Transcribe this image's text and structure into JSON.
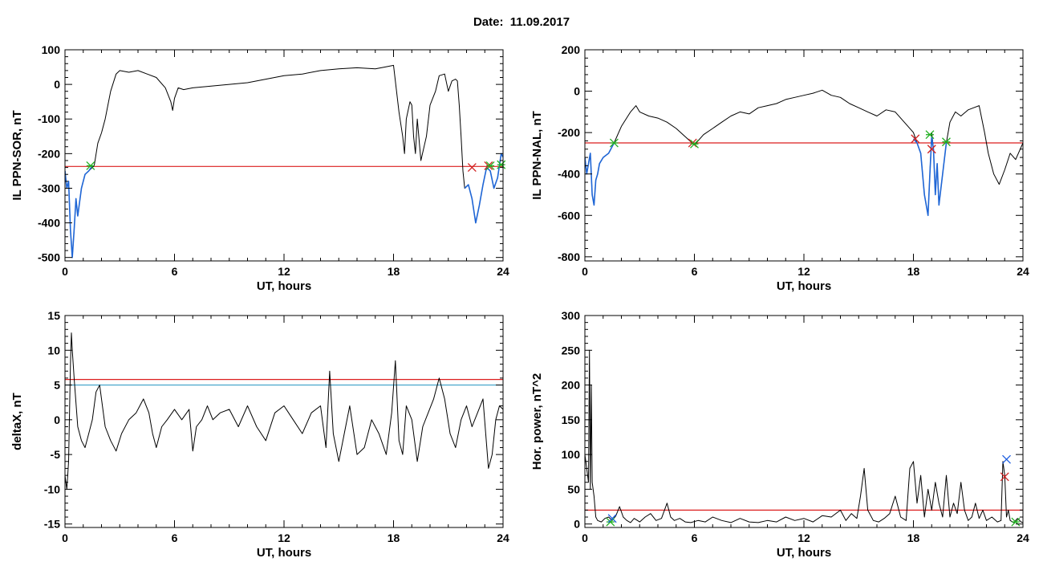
{
  "title": "Date:  11.09.2017",
  "colors": {
    "background": "#ffffff",
    "axes": "#000000",
    "trace": "#000000",
    "highlight_trace": "#1f66d6",
    "threshold": "#dc1e1e",
    "threshold_secondary": "#3aa0c8",
    "marker_start": "#d02020",
    "marker_end": "#22b022",
    "marker_extra": "#2060e0"
  },
  "chart_data": [
    {
      "type": "line",
      "xlabel": "UT, hours",
      "ylabel": "IL PPN-SOR, nT",
      "xlim": [
        0,
        24
      ],
      "ylim": [
        -510,
        100
      ],
      "xticks": [
        0,
        6,
        12,
        18,
        24
      ],
      "yticks": [
        -500,
        -400,
        -300,
        -200,
        -100,
        0,
        100
      ],
      "series": [
        {
          "role": "trace",
          "x": [
            0,
            0.1,
            0.2,
            0.3,
            0.4,
            0.5,
            0.6,
            0.7,
            0.9,
            1.1,
            1.3,
            1.6,
            1.8,
            2.0,
            2.2,
            2.5,
            2.8,
            3.0,
            3.5,
            4.0,
            4.5,
            5.0,
            5.5,
            5.8,
            5.9,
            6.0,
            6.2,
            6.5,
            7.0,
            8.0,
            9.0,
            10.0,
            11.0,
            12.0,
            13.0,
            14.0,
            15.0,
            16.0,
            17.0,
            17.5,
            18.0,
            18.3,
            18.5,
            18.6,
            18.7,
            18.9,
            19.0,
            19.1,
            19.2,
            19.3,
            19.5,
            19.8,
            20.0,
            20.3,
            20.5,
            20.8,
            21.0,
            21.2,
            21.4,
            21.5,
            21.6,
            21.7,
            21.8,
            21.9,
            22.1,
            22.3,
            22.5,
            22.7,
            22.9,
            23.1,
            23.3,
            23.5,
            23.7,
            23.9,
            24.0
          ],
          "y": [
            -250,
            -300,
            -280,
            -420,
            -500,
            -420,
            -330,
            -380,
            -300,
            -260,
            -250,
            -235,
            -170,
            -140,
            -100,
            -20,
            30,
            40,
            35,
            40,
            30,
            20,
            -10,
            -50,
            -75,
            -40,
            -10,
            -15,
            -10,
            -5,
            0,
            5,
            15,
            25,
            30,
            40,
            45,
            48,
            45,
            50,
            55,
            -80,
            -150,
            -200,
            -100,
            -50,
            -60,
            -150,
            -200,
            -100,
            -220,
            -150,
            -60,
            -20,
            25,
            30,
            -20,
            10,
            15,
            10,
            -60,
            -150,
            -250,
            -300,
            -290,
            -330,
            -400,
            -350,
            -290,
            -240,
            -250,
            -300,
            -270,
            -200,
            -210
          ]
        },
        {
          "role": "highlight",
          "x": [
            0,
            0.1,
            0.2,
            0.3,
            0.4,
            0.5,
            0.6,
            0.7,
            0.9,
            1.1,
            1.3,
            1.5
          ],
          "y": [
            -250,
            -300,
            -280,
            -420,
            -500,
            -420,
            -330,
            -380,
            -300,
            -260,
            -250,
            -235
          ]
        },
        {
          "role": "highlight",
          "x": [
            21.9,
            22.1,
            22.3,
            22.5,
            22.7,
            22.9,
            23.1,
            23.3,
            23.5,
            23.7,
            23.9,
            24.0
          ],
          "y": [
            -300,
            -290,
            -330,
            -400,
            -350,
            -290,
            -240,
            -250,
            -300,
            -270,
            -200,
            -210
          ]
        }
      ],
      "hlines": [
        {
          "y": -237,
          "role": "threshold"
        }
      ],
      "markers": [
        {
          "x": 1.4,
          "y": -235,
          "role": "marker_end"
        },
        {
          "x": 22.3,
          "y": -240,
          "role": "marker_start"
        },
        {
          "x": 23.2,
          "y": -235,
          "role": "marker_start"
        },
        {
          "x": 23.3,
          "y": -235,
          "role": "marker_end"
        },
        {
          "x": 23.9,
          "y": -232,
          "role": "marker_end"
        }
      ]
    },
    {
      "type": "line",
      "xlabel": "UT, hours",
      "ylabel": "IL PPN-NAL, nT",
      "xlim": [
        0,
        24
      ],
      "ylim": [
        -820,
        200
      ],
      "xticks": [
        0,
        6,
        12,
        18,
        24
      ],
      "yticks": [
        -800,
        -600,
        -400,
        -200,
        0,
        200
      ],
      "series": [
        {
          "role": "trace",
          "x": [
            0,
            0.1,
            0.2,
            0.3,
            0.4,
            0.5,
            0.6,
            0.7,
            0.8,
            1.0,
            1.3,
            1.6,
            2.0,
            2.5,
            2.8,
            3.0,
            3.5,
            4.0,
            4.5,
            5.0,
            5.5,
            6.0,
            6.5,
            7.0,
            7.5,
            8.0,
            8.5,
            9.0,
            9.5,
            10.0,
            10.5,
            11.0,
            11.5,
            12.0,
            12.5,
            13.0,
            13.5,
            14.0,
            14.5,
            15.0,
            15.5,
            16.0,
            16.5,
            17.0,
            17.5,
            18.0,
            18.2,
            18.4,
            18.6,
            18.8,
            18.9,
            19.0,
            19.1,
            19.2,
            19.3,
            19.4,
            19.6,
            19.8,
            20.0,
            20.3,
            20.6,
            21.0,
            21.3,
            21.6,
            21.9,
            22.1,
            22.4,
            22.7,
            23.0,
            23.3,
            23.6,
            24.0
          ],
          "y": [
            -320,
            -400,
            -350,
            -300,
            -500,
            -550,
            -430,
            -400,
            -350,
            -320,
            -300,
            -250,
            -170,
            -100,
            -70,
            -100,
            -120,
            -130,
            -150,
            -180,
            -220,
            -260,
            -210,
            -180,
            -150,
            -120,
            -100,
            -110,
            -80,
            -70,
            -60,
            -40,
            -30,
            -20,
            -10,
            5,
            -20,
            -30,
            -60,
            -80,
            -100,
            -120,
            -90,
            -100,
            -150,
            -200,
            -250,
            -300,
            -500,
            -600,
            -400,
            -200,
            -280,
            -500,
            -350,
            -550,
            -400,
            -250,
            -150,
            -100,
            -120,
            -90,
            -80,
            -70,
            -200,
            -300,
            -400,
            -450,
            -380,
            -300,
            -330,
            -250
          ]
        },
        {
          "role": "highlight",
          "x": [
            0,
            0.1,
            0.2,
            0.3,
            0.4,
            0.5,
            0.6,
            0.7,
            0.8,
            1.0,
            1.3,
            1.6
          ],
          "y": [
            -320,
            -400,
            -350,
            -300,
            -500,
            -550,
            -430,
            -400,
            -350,
            -320,
            -300,
            -250
          ]
        },
        {
          "role": "highlight",
          "x": [
            18.0,
            18.2,
            18.4,
            18.6,
            18.8,
            18.9,
            19.0,
            19.1,
            19.2,
            19.3,
            19.4,
            19.6,
            19.8
          ],
          "y": [
            -230,
            -250,
            -300,
            -500,
            -600,
            -400,
            -220,
            -280,
            -500,
            -350,
            -550,
            -400,
            -250
          ]
        }
      ],
      "hlines": [
        {
          "y": -250,
          "role": "threshold"
        }
      ],
      "markers": [
        {
          "x": 1.6,
          "y": -250,
          "role": "marker_end"
        },
        {
          "x": 5.9,
          "y": -250,
          "role": "marker_start"
        },
        {
          "x": 6.0,
          "y": -255,
          "role": "marker_end"
        },
        {
          "x": 18.1,
          "y": -230,
          "role": "marker_start"
        },
        {
          "x": 18.9,
          "y": -210,
          "role": "marker_end"
        },
        {
          "x": 19.0,
          "y": -280,
          "role": "marker_start"
        },
        {
          "x": 19.8,
          "y": -245,
          "role": "marker_end"
        }
      ]
    },
    {
      "type": "line",
      "xlabel": "UT, hours",
      "ylabel": "deltaX, nT",
      "xlim": [
        0,
        24
      ],
      "ylim": [
        -15.5,
        15
      ],
      "xticks": [
        0,
        6,
        12,
        18,
        24
      ],
      "yticks": [
        -15,
        -10,
        -5,
        0,
        5,
        10,
        15
      ],
      "series": [
        {
          "role": "trace",
          "x": [
            0,
            0.1,
            0.2,
            0.3,
            0.35,
            0.4,
            0.5,
            0.7,
            0.9,
            1.1,
            1.3,
            1.5,
            1.7,
            1.9,
            2.2,
            2.5,
            2.8,
            3.1,
            3.5,
            3.9,
            4.3,
            4.6,
            4.8,
            5.0,
            5.3,
            5.6,
            6.0,
            6.4,
            6.8,
            7.0,
            7.2,
            7.5,
            7.8,
            8.1,
            8.5,
            9.0,
            9.5,
            10.0,
            10.5,
            11.0,
            11.5,
            12.0,
            12.5,
            13.0,
            13.5,
            14.0,
            14.3,
            14.5,
            14.7,
            15.0,
            15.3,
            15.6,
            16.0,
            16.4,
            16.8,
            17.2,
            17.6,
            17.9,
            18.1,
            18.3,
            18.5,
            18.7,
            19.0,
            19.3,
            19.6,
            19.9,
            20.2,
            20.5,
            20.8,
            21.1,
            21.4,
            21.7,
            22.0,
            22.3,
            22.6,
            22.9,
            23.2,
            23.4,
            23.6,
            23.8,
            24.0
          ],
          "y": [
            -8,
            -10,
            -6,
            8,
            12.5,
            10,
            6,
            -1,
            -3,
            -4,
            -2,
            0,
            4,
            5,
            -1,
            -3,
            -4.5,
            -2,
            0,
            1,
            3,
            1,
            -2,
            -4,
            -1,
            0,
            1.5,
            0,
            1.5,
            -4.5,
            -1,
            0,
            2,
            0,
            1,
            1.5,
            -1,
            2,
            -1,
            -3,
            1,
            2,
            0,
            -2,
            1,
            2,
            -4,
            7,
            -2,
            -6,
            -2,
            2,
            -5,
            -4,
            0,
            -2,
            -5,
            1,
            8.5,
            -3,
            -5,
            2,
            0,
            -6,
            -1,
            1,
            3,
            6,
            3,
            -2,
            -4,
            0,
            2,
            -1,
            1,
            3,
            -7,
            -5,
            0,
            2,
            1.5
          ]
        }
      ],
      "hlines": [
        {
          "y": 5.8,
          "role": "threshold"
        },
        {
          "y": 5.0,
          "role": "threshold_secondary"
        }
      ],
      "markers": []
    },
    {
      "type": "line",
      "xlabel": "UT, hours",
      "ylabel": "Hor. power, nT^2",
      "xlim": [
        0,
        24
      ],
      "ylim": [
        -5,
        300
      ],
      "xticks": [
        0,
        6,
        12,
        18,
        24
      ],
      "yticks": [
        0,
        50,
        100,
        150,
        200,
        250,
        300
      ],
      "series": [
        {
          "role": "trace",
          "x": [
            0,
            0.1,
            0.2,
            0.25,
            0.3,
            0.35,
            0.4,
            0.5,
            0.6,
            0.7,
            0.9,
            1.1,
            1.3,
            1.5,
            1.7,
            1.9,
            2.1,
            2.3,
            2.5,
            2.7,
            3.0,
            3.3,
            3.6,
            3.9,
            4.2,
            4.5,
            4.7,
            4.9,
            5.2,
            5.5,
            5.8,
            6.2,
            6.6,
            7.0,
            7.5,
            8.0,
            8.5,
            9.0,
            9.5,
            10.0,
            10.5,
            11.0,
            11.5,
            12.0,
            12.5,
            13.0,
            13.5,
            14.0,
            14.3,
            14.6,
            14.9,
            15.1,
            15.3,
            15.5,
            15.8,
            16.1,
            16.4,
            16.7,
            17.0,
            17.3,
            17.6,
            17.8,
            18.0,
            18.2,
            18.4,
            18.6,
            18.8,
            19.0,
            19.2,
            19.4,
            19.6,
            19.8,
            20.0,
            20.2,
            20.4,
            20.6,
            20.8,
            21.0,
            21.2,
            21.4,
            21.6,
            21.8,
            22.0,
            22.3,
            22.6,
            22.8,
            22.9,
            23.0,
            23.1,
            23.2,
            23.3,
            23.5,
            23.7,
            23.9,
            24.0
          ],
          "y": [
            100,
            80,
            60,
            250,
            50,
            200,
            60,
            40,
            10,
            5,
            3,
            8,
            10,
            5,
            12,
            25,
            10,
            5,
            2,
            8,
            3,
            10,
            15,
            5,
            8,
            30,
            10,
            5,
            8,
            3,
            2,
            5,
            3,
            10,
            5,
            2,
            8,
            3,
            2,
            5,
            3,
            10,
            5,
            8,
            3,
            12,
            10,
            20,
            5,
            15,
            8,
            40,
            80,
            20,
            5,
            3,
            8,
            15,
            40,
            10,
            5,
            80,
            90,
            30,
            70,
            10,
            50,
            20,
            60,
            30,
            10,
            70,
            10,
            30,
            15,
            60,
            20,
            5,
            10,
            30,
            8,
            20,
            5,
            10,
            3,
            5,
            90,
            70,
            10,
            20,
            5,
            2,
            8,
            3,
            2
          ]
        }
      ],
      "hlines": [
        {
          "y": 20,
          "role": "threshold"
        }
      ],
      "markers": [
        {
          "x": 1.4,
          "y": 3,
          "role": "marker_end"
        },
        {
          "x": 1.5,
          "y": 8,
          "role": "marker_extra"
        },
        {
          "x": 23.0,
          "y": 68,
          "role": "marker_start"
        },
        {
          "x": 23.1,
          "y": 93,
          "role": "marker_extra"
        },
        {
          "x": 23.6,
          "y": 3,
          "role": "marker_end"
        }
      ]
    }
  ]
}
